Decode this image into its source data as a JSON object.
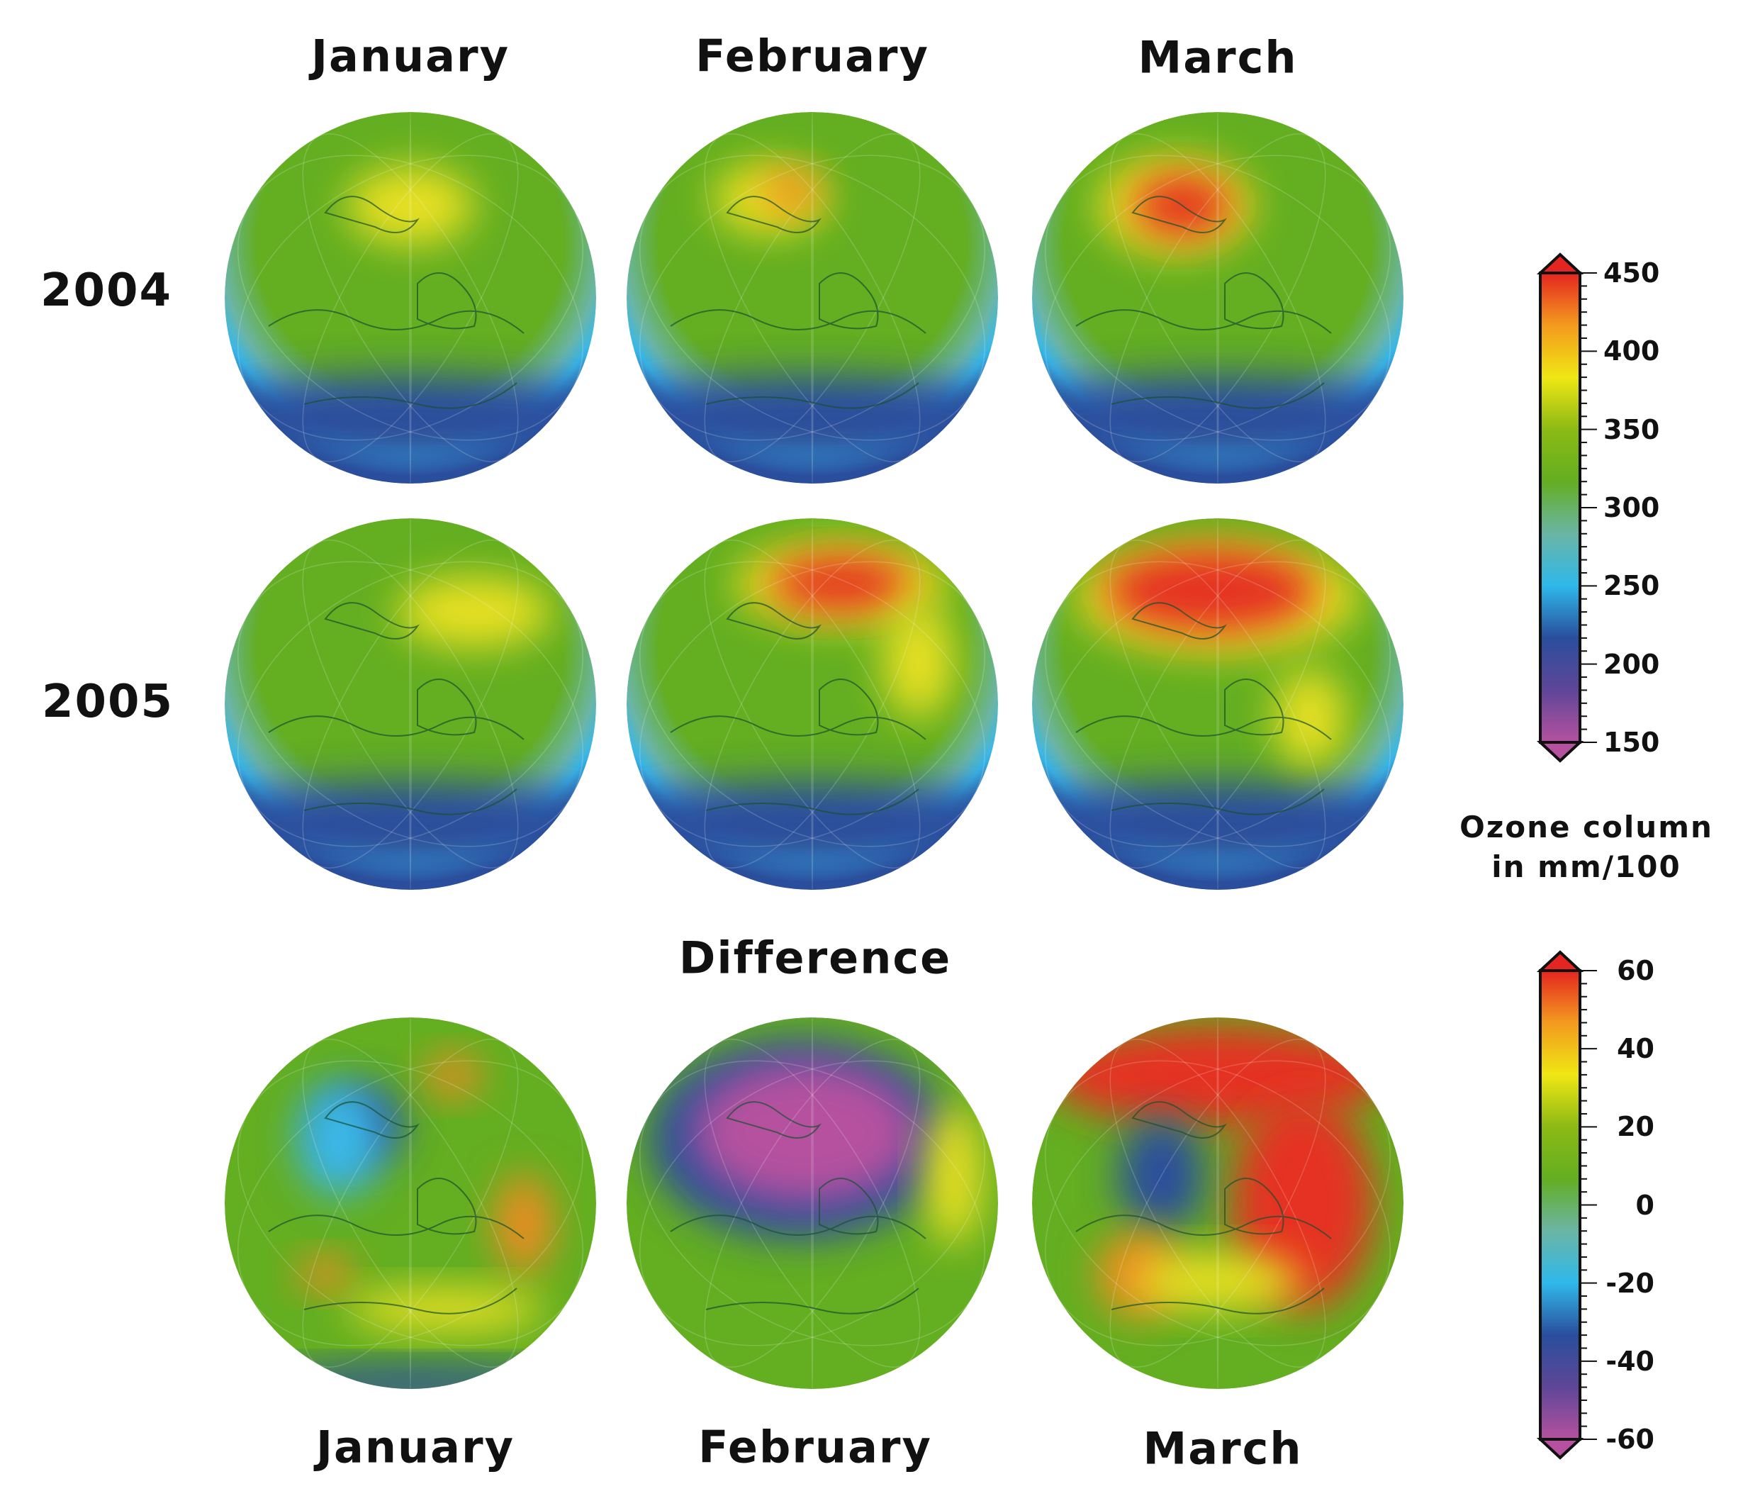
{
  "column_titles_top": [
    "January",
    "February",
    "March"
  ],
  "row_labels": [
    "2004",
    "2005"
  ],
  "difference_title": "Difference",
  "column_titles_bottom": [
    "January",
    "February",
    "March"
  ],
  "colorbar_ozone": {
    "ticks": [
      "450",
      "400",
      "350",
      "300",
      "250",
      "200",
      "150"
    ],
    "range": [
      150,
      450
    ],
    "label_line1": "Ozone column",
    "label_line2": "in mm/100",
    "colors": [
      "#e52521",
      "#f39a1e",
      "#f0e614",
      "#8cba14",
      "#63ae21",
      "#6bb5a5",
      "#2eb8ea",
      "#2a4e9c",
      "#5f4698",
      "#b5519f"
    ]
  },
  "colorbar_difference": {
    "ticks": [
      "60",
      "40",
      "20",
      "0",
      "-20",
      "-40",
      "-60"
    ],
    "range": [
      -60,
      60
    ],
    "colors": [
      "#e52521",
      "#f39a1e",
      "#f0e614",
      "#8cba14",
      "#63ae21",
      "#6bb5a5",
      "#2eb8ea",
      "#2a4e9c",
      "#5f4698",
      "#b5519f"
    ]
  }
}
